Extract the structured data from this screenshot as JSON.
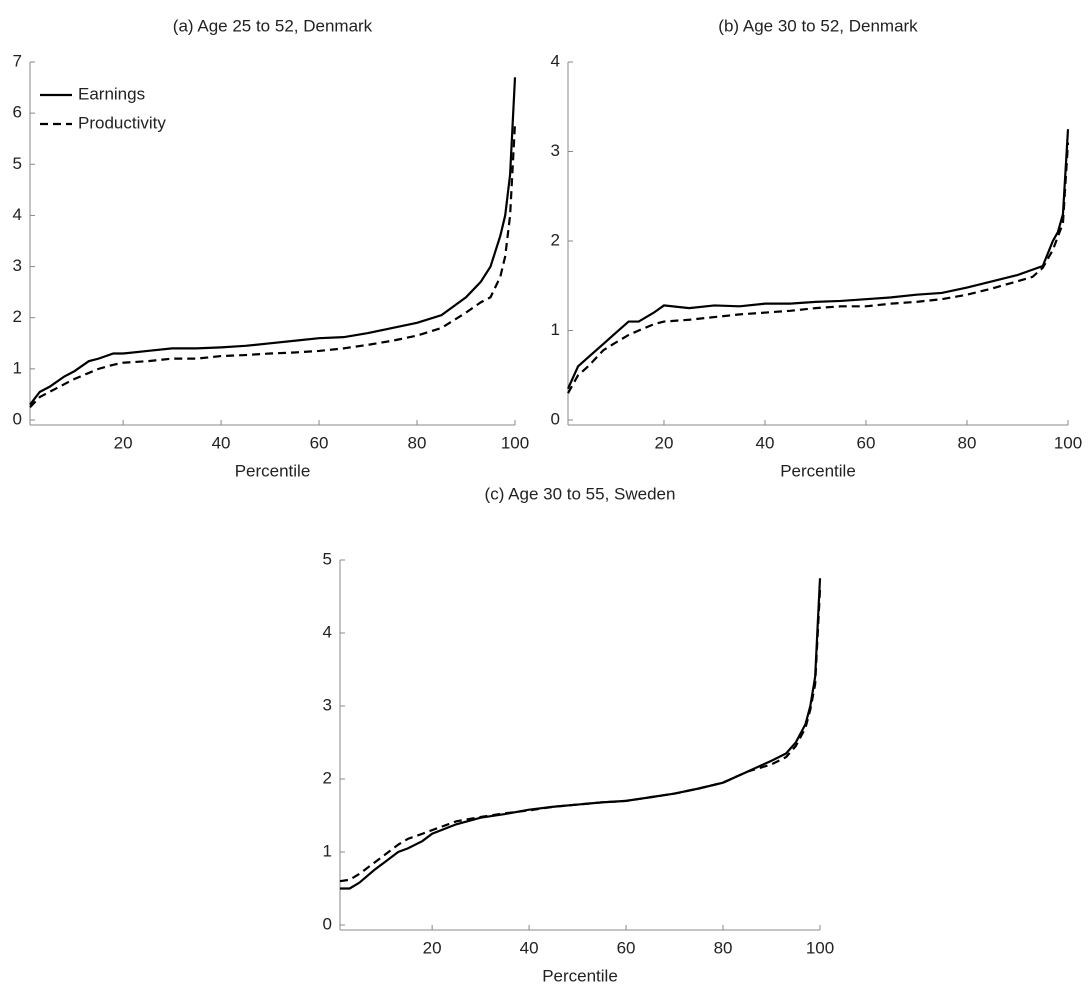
{
  "chart_data": [
    {
      "type": "line",
      "title": "(a) Age 25 to 52, Denmark",
      "x_label": "Percentile",
      "x": [
        1,
        3,
        5,
        8,
        10,
        13,
        15,
        18,
        20,
        25,
        30,
        35,
        40,
        45,
        50,
        55,
        60,
        65,
        70,
        75,
        80,
        85,
        90,
        93,
        95,
        97,
        98,
        99,
        100
      ],
      "series": [
        {
          "name": "Earnings",
          "color": "#000000",
          "style": "solid",
          "values": [
            0.3,
            0.55,
            0.65,
            0.85,
            0.95,
            1.15,
            1.2,
            1.3,
            1.3,
            1.35,
            1.4,
            1.4,
            1.42,
            1.45,
            1.5,
            1.55,
            1.6,
            1.62,
            1.7,
            1.8,
            1.9,
            2.05,
            2.4,
            2.7,
            3.0,
            3.6,
            4.0,
            4.8,
            6.7
          ]
        },
        {
          "name": "Productivity",
          "color": "#000000",
          "style": "dashed",
          "values": [
            0.25,
            0.45,
            0.55,
            0.7,
            0.8,
            0.92,
            1.0,
            1.08,
            1.12,
            1.15,
            1.2,
            1.2,
            1.25,
            1.27,
            1.3,
            1.32,
            1.35,
            1.4,
            1.47,
            1.55,
            1.65,
            1.8,
            2.1,
            2.3,
            2.4,
            2.8,
            3.2,
            4.0,
            5.8
          ]
        }
      ],
      "xlim": [
        1,
        100
      ],
      "xticks": [
        20,
        40,
        60,
        80,
        100
      ],
      "ylim": [
        0,
        7
      ],
      "yticks": [
        0,
        1,
        2,
        3,
        4,
        5,
        6,
        7
      ],
      "legend": "upper left"
    },
    {
      "type": "line",
      "title": "(b) Age 30 to 52, Denmark",
      "x_label": "Percentile",
      "x": [
        1,
        3,
        5,
        8,
        10,
        13,
        15,
        18,
        20,
        25,
        30,
        35,
        40,
        45,
        50,
        55,
        60,
        65,
        70,
        75,
        80,
        85,
        90,
        93,
        95,
        97,
        98,
        99,
        100
      ],
      "series": [
        {
          "name": "Earnings",
          "color": "#000000",
          "style": "solid",
          "values": [
            0.35,
            0.6,
            0.7,
            0.85,
            0.95,
            1.1,
            1.1,
            1.2,
            1.28,
            1.25,
            1.28,
            1.27,
            1.3,
            1.3,
            1.32,
            1.33,
            1.35,
            1.37,
            1.4,
            1.42,
            1.48,
            1.55,
            1.62,
            1.68,
            1.72,
            2.0,
            2.1,
            2.3,
            3.25
          ]
        },
        {
          "name": "Productivity",
          "color": "#000000",
          "style": "dashed",
          "values": [
            0.3,
            0.5,
            0.6,
            0.78,
            0.85,
            0.95,
            1.0,
            1.07,
            1.1,
            1.12,
            1.15,
            1.18,
            1.2,
            1.22,
            1.25,
            1.27,
            1.27,
            1.3,
            1.32,
            1.35,
            1.4,
            1.47,
            1.55,
            1.6,
            1.7,
            1.9,
            2.05,
            2.2,
            3.1
          ]
        }
      ],
      "xlim": [
        1,
        100
      ],
      "xticks": [
        20,
        40,
        60,
        80,
        100
      ],
      "ylim": [
        0,
        4
      ],
      "yticks": [
        0,
        1,
        2,
        3,
        4
      ]
    },
    {
      "type": "line",
      "title": "(c) Age 30 to 55, Sweden",
      "x_label": "Percentile",
      "x": [
        1,
        3,
        5,
        8,
        10,
        13,
        15,
        18,
        20,
        25,
        30,
        35,
        40,
        45,
        50,
        55,
        60,
        65,
        70,
        75,
        80,
        85,
        90,
        93,
        95,
        97,
        98,
        99,
        100
      ],
      "series": [
        {
          "name": "Earnings",
          "color": "#000000",
          "style": "solid",
          "values": [
            0.5,
            0.5,
            0.58,
            0.75,
            0.85,
            1.0,
            1.05,
            1.15,
            1.25,
            1.38,
            1.47,
            1.52,
            1.58,
            1.62,
            1.65,
            1.68,
            1.7,
            1.75,
            1.8,
            1.87,
            1.95,
            2.1,
            2.25,
            2.35,
            2.5,
            2.75,
            3.0,
            3.4,
            4.75
          ]
        },
        {
          "name": "Productivity",
          "color": "#000000",
          "style": "dashed",
          "values": [
            0.6,
            0.62,
            0.7,
            0.85,
            0.95,
            1.1,
            1.18,
            1.25,
            1.3,
            1.42,
            1.48,
            1.53,
            1.57,
            1.62,
            1.65,
            1.68,
            1.7,
            1.75,
            1.8,
            1.87,
            1.95,
            2.1,
            2.2,
            2.3,
            2.45,
            2.7,
            2.95,
            3.3,
            4.6
          ]
        }
      ],
      "xlim": [
        1,
        100
      ],
      "xticks": [
        20,
        40,
        60,
        80,
        100
      ],
      "ylim": [
        0,
        5
      ],
      "yticks": [
        0,
        1,
        2,
        3,
        4,
        5
      ]
    }
  ]
}
